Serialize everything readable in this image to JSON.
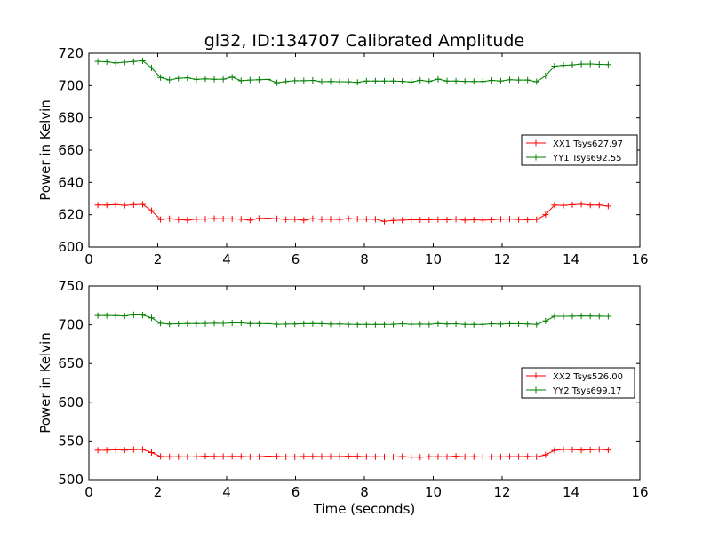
{
  "figure": {
    "title": "gl32, ID:134707 Calibrated Amplitude",
    "xlabel": "Time (seconds)"
  },
  "chart_data": [
    {
      "type": "line",
      "title": "gl32, ID:134707 Calibrated Amplitude",
      "xlabel": "",
      "ylabel": "Power in Kelvin",
      "xlim": [
        0,
        16
      ],
      "ylim": [
        600,
        720
      ],
      "xticks": [
        0,
        2,
        4,
        6,
        8,
        10,
        12,
        14,
        16
      ],
      "yticks": [
        600,
        620,
        640,
        660,
        680,
        700,
        720
      ],
      "grid": false,
      "legend_position": "right",
      "x": [
        0.26,
        0.52,
        0.78,
        1.04,
        1.3,
        1.56,
        1.82,
        2.08,
        2.34,
        2.6,
        2.86,
        3.12,
        3.38,
        3.64,
        3.9,
        4.16,
        4.42,
        4.68,
        4.94,
        5.2,
        5.46,
        5.72,
        5.98,
        6.24,
        6.5,
        6.76,
        7.02,
        7.28,
        7.54,
        7.8,
        8.06,
        8.32,
        8.58,
        8.84,
        9.1,
        9.36,
        9.62,
        9.88,
        10.14,
        10.4,
        10.66,
        10.92,
        11.18,
        11.44,
        11.7,
        11.96,
        12.22,
        12.48,
        12.74,
        13.0,
        13.26,
        13.52,
        13.78,
        14.04,
        14.3,
        14.56,
        14.82,
        15.08
      ],
      "series": [
        {
          "name": "XX1 Tsys627.97",
          "color": "#ff0000",
          "values": [
            626.0,
            626.0,
            626.3,
            625.8,
            626.2,
            626.4,
            622.5,
            617.0,
            617.5,
            617.0,
            616.6,
            617.2,
            617.3,
            617.6,
            617.4,
            617.4,
            617.2,
            616.6,
            617.7,
            617.8,
            617.5,
            617.0,
            617.1,
            616.6,
            617.5,
            617.1,
            617.2,
            617.0,
            617.6,
            617.3,
            617.2,
            617.2,
            615.8,
            616.4,
            616.6,
            616.8,
            616.8,
            616.8,
            617.0,
            616.8,
            617.2,
            616.6,
            616.8,
            616.6,
            616.8,
            617.2,
            617.3,
            617.0,
            616.8,
            617.0,
            620.0,
            626.0,
            625.8,
            626.2,
            626.5,
            626.0,
            626.0,
            625.4
          ]
        },
        {
          "name": "YY1 Tsys692.55",
          "color": "#008000",
          "values": [
            715.0,
            714.8,
            714.0,
            714.5,
            714.9,
            715.4,
            711.0,
            705.0,
            703.5,
            704.5,
            704.8,
            703.8,
            704.2,
            703.9,
            704.0,
            705.2,
            703.0,
            703.4,
            703.6,
            703.8,
            701.8,
            702.5,
            703.0,
            703.0,
            703.2,
            702.4,
            702.5,
            702.4,
            702.3,
            702.0,
            702.8,
            702.8,
            702.8,
            702.8,
            702.6,
            702.2,
            703.3,
            702.6,
            704.0,
            702.8,
            702.8,
            702.6,
            702.5,
            702.5,
            703.2,
            702.8,
            703.6,
            703.4,
            703.4,
            702.4,
            706.0,
            712.0,
            712.5,
            712.8,
            713.3,
            713.4,
            713.1,
            713.0
          ]
        }
      ]
    },
    {
      "type": "line",
      "title": "",
      "xlabel": "Time (seconds)",
      "ylabel": "Power in Kelvin",
      "xlim": [
        0,
        16
      ],
      "ylim": [
        500,
        750
      ],
      "xticks": [
        0,
        2,
        4,
        6,
        8,
        10,
        12,
        14,
        16
      ],
      "yticks": [
        500,
        550,
        600,
        650,
        700,
        750
      ],
      "grid": false,
      "legend_position": "right",
      "x": [
        0.26,
        0.52,
        0.78,
        1.04,
        1.3,
        1.56,
        1.82,
        2.08,
        2.34,
        2.6,
        2.86,
        3.12,
        3.38,
        3.64,
        3.9,
        4.16,
        4.42,
        4.68,
        4.94,
        5.2,
        5.46,
        5.72,
        5.98,
        6.24,
        6.5,
        6.76,
        7.02,
        7.28,
        7.54,
        7.8,
        8.06,
        8.32,
        8.58,
        8.84,
        9.1,
        9.36,
        9.62,
        9.88,
        10.14,
        10.4,
        10.66,
        10.92,
        11.18,
        11.44,
        11.7,
        11.96,
        12.22,
        12.48,
        12.74,
        13.0,
        13.26,
        13.52,
        13.78,
        14.04,
        14.3,
        14.56,
        14.82,
        15.08
      ],
      "series": [
        {
          "name": "XX2 Tsys526.00",
          "color": "#ff0000",
          "values": [
            538.0,
            538.1,
            538.5,
            538.1,
            538.8,
            539.0,
            535.0,
            530.0,
            529.5,
            529.5,
            529.4,
            529.6,
            530.2,
            530.0,
            529.8,
            530.0,
            530.0,
            529.4,
            529.5,
            530.4,
            529.9,
            529.4,
            529.4,
            530.0,
            530.0,
            529.8,
            529.8,
            529.8,
            530.2,
            530.1,
            529.6,
            529.6,
            529.4,
            529.2,
            529.8,
            529.1,
            529.0,
            529.6,
            529.6,
            529.6,
            530.2,
            529.4,
            529.6,
            529.2,
            529.4,
            529.4,
            529.8,
            529.7,
            530.0,
            529.4,
            532.0,
            537.8,
            539.0,
            538.8,
            538.2,
            538.6,
            539.2,
            538.3
          ]
        },
        {
          "name": "YY2 Tsys699.17",
          "color": "#008000",
          "values": [
            712.0,
            712.0,
            711.8,
            711.4,
            713.0,
            712.6,
            709.0,
            702.0,
            701.0,
            701.2,
            701.5,
            701.5,
            701.7,
            702.0,
            701.8,
            702.4,
            702.4,
            701.6,
            701.6,
            701.4,
            700.6,
            700.8,
            701.0,
            701.4,
            701.6,
            701.4,
            700.8,
            701.0,
            700.6,
            700.4,
            700.4,
            700.4,
            700.4,
            700.6,
            701.2,
            700.6,
            700.8,
            700.6,
            701.6,
            701.0,
            701.2,
            700.4,
            700.4,
            700.4,
            701.2,
            700.8,
            701.4,
            701.2,
            701.0,
            700.5,
            705.0,
            711.0,
            711.0,
            711.2,
            711.4,
            711.3,
            711.2,
            711.0
          ]
        }
      ]
    }
  ]
}
